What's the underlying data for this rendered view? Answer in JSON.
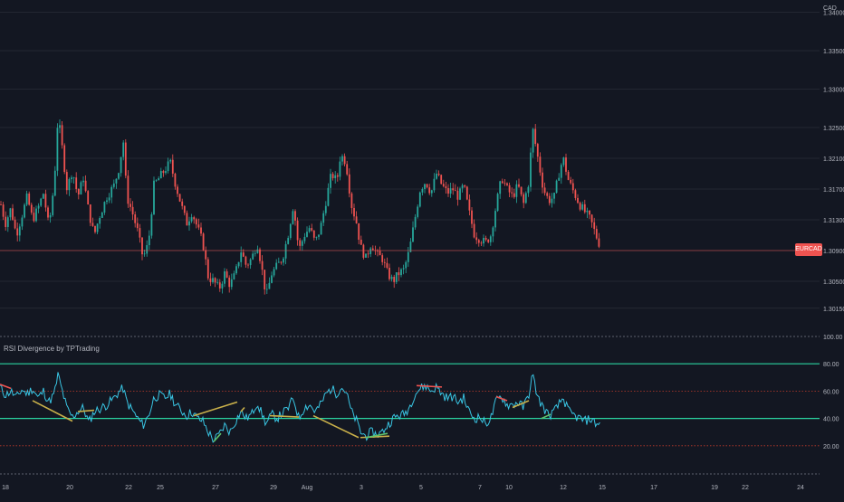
{
  "chart_data": [
    {
      "type": "candlestick",
      "symbol": "EURCAD",
      "currency": "CAD",
      "price_ticks": [
        "1.34000",
        "1.33500",
        "1.33000",
        "1.32500",
        "1.32100",
        "1.31700",
        "1.31300",
        "1.30900",
        "1.30500",
        "1.30150"
      ],
      "close_path": [
        [
          0,
          1.3155
        ],
        [
          6,
          1.3125
        ],
        [
          12,
          1.3145
        ],
        [
          18,
          1.311
        ],
        [
          24,
          1.3135
        ],
        [
          30,
          1.316
        ],
        [
          36,
          1.313
        ],
        [
          42,
          1.3145
        ],
        [
          48,
          1.3165
        ],
        [
          54,
          1.312
        ],
        [
          60,
          1.318
        ],
        [
          64,
          1.3265
        ],
        [
          68,
          1.323
        ],
        [
          74,
          1.317
        ],
        [
          80,
          1.3195
        ],
        [
          86,
          1.316
        ],
        [
          92,
          1.3185
        ],
        [
          98,
          1.314
        ],
        [
          104,
          1.311
        ],
        [
          110,
          1.3135
        ],
        [
          118,
          1.316
        ],
        [
          126,
          1.3175
        ],
        [
          132,
          1.32
        ],
        [
          136,
          1.3235
        ],
        [
          140,
          1.316
        ],
        [
          146,
          1.314
        ],
        [
          152,
          1.3115
        ],
        [
          158,
          1.308
        ],
        [
          164,
          1.31
        ],
        [
          170,
          1.3175
        ],
        [
          176,
          1.3185
        ],
        [
          182,
          1.3195
        ],
        [
          188,
          1.3205
        ],
        [
          194,
          1.3175
        ],
        [
          200,
          1.315
        ],
        [
          206,
          1.3125
        ],
        [
          212,
          1.314
        ],
        [
          218,
          1.312
        ],
        [
          224,
          1.31
        ],
        [
          230,
          1.3055
        ],
        [
          236,
          1.305
        ],
        [
          242,
          1.304
        ],
        [
          248,
          1.306
        ],
        [
          254,
          1.3045
        ],
        [
          260,
          1.306
        ],
        [
          266,
          1.309
        ],
        [
          272,
          1.307
        ],
        [
          278,
          1.308
        ],
        [
          284,
          1.31
        ],
        [
          288,
          1.3075
        ],
        [
          294,
          1.303
        ],
        [
          300,
          1.306
        ],
        [
          306,
          1.307
        ],
        [
          312,
          1.308
        ],
        [
          318,
          1.311
        ],
        [
          324,
          1.315
        ],
        [
          330,
          1.309
        ],
        [
          336,
          1.311
        ],
        [
          342,
          1.312
        ],
        [
          348,
          1.31
        ],
        [
          354,
          1.312
        ],
        [
          360,
          1.3155
        ],
        [
          366,
          1.319
        ],
        [
          372,
          1.318
        ],
        [
          376,
          1.3215
        ],
        [
          382,
          1.3205
        ],
        [
          388,
          1.315
        ],
        [
          394,
          1.3125
        ],
        [
          398,
          1.3095
        ],
        [
          404,
          1.308
        ],
        [
          410,
          1.31
        ],
        [
          416,
          1.3085
        ],
        [
          422,
          1.308
        ],
        [
          428,
          1.306
        ],
        [
          434,
          1.305
        ],
        [
          440,
          1.306
        ],
        [
          446,
          1.3065
        ],
        [
          452,
          1.309
        ],
        [
          458,
          1.313
        ],
        [
          464,
          1.317
        ],
        [
          470,
          1.318
        ],
        [
          476,
          1.3165
        ],
        [
          482,
          1.319
        ],
        [
          488,
          1.3175
        ],
        [
          494,
          1.3165
        ],
        [
          500,
          1.317
        ],
        [
          506,
          1.316
        ],
        [
          512,
          1.3175
        ],
        [
          518,
          1.314
        ],
        [
          524,
          1.311
        ],
        [
          530,
          1.3105
        ],
        [
          536,
          1.31
        ],
        [
          542,
          1.311
        ],
        [
          548,
          1.315
        ],
        [
          554,
          1.3185
        ],
        [
          560,
          1.317
        ],
        [
          566,
          1.316
        ],
        [
          572,
          1.3175
        ],
        [
          578,
          1.315
        ],
        [
          584,
          1.318
        ],
        [
          588,
          1.325
        ],
        [
          594,
          1.321
        ],
        [
          600,
          1.317
        ],
        [
          606,
          1.3155
        ],
        [
          612,
          1.316
        ],
        [
          618,
          1.3195
        ],
        [
          622,
          1.321
        ],
        [
          628,
          1.318
        ],
        [
          634,
          1.3165
        ],
        [
          640,
          1.315
        ],
        [
          646,
          1.314
        ],
        [
          652,
          1.313
        ],
        [
          658,
          1.311
        ],
        [
          663,
          1.3095
        ]
      ],
      "current_price": 1.3095,
      "gridlines": true
    },
    {
      "type": "line",
      "title": "RSI Divergence by TPTrading",
      "ylim": [
        0,
        100
      ],
      "y_ticks": [
        "100.00",
        "80.00",
        "60.00",
        "40.00",
        "20.00"
      ],
      "levels": {
        "overbought": 80,
        "upper_dotted": 60,
        "middle": 40,
        "lower_dotted": 20
      },
      "rsi_path": [
        [
          0,
          63
        ],
        [
          6,
          57
        ],
        [
          12,
          60
        ],
        [
          18,
          55
        ],
        [
          24,
          61
        ],
        [
          30,
          58
        ],
        [
          36,
          62
        ],
        [
          42,
          55
        ],
        [
          48,
          60
        ],
        [
          54,
          52
        ],
        [
          60,
          58
        ],
        [
          64,
          72
        ],
        [
          68,
          62
        ],
        [
          74,
          47
        ],
        [
          80,
          41
        ],
        [
          86,
          45
        ],
        [
          92,
          48
        ],
        [
          98,
          37
        ],
        [
          104,
          45
        ],
        [
          110,
          47
        ],
        [
          118,
          50
        ],
        [
          126,
          55
        ],
        [
          132,
          60
        ],
        [
          136,
          62
        ],
        [
          140,
          52
        ],
        [
          146,
          46
        ],
        [
          152,
          40
        ],
        [
          158,
          35
        ],
        [
          164,
          42
        ],
        [
          170,
          55
        ],
        [
          176,
          57
        ],
        [
          182,
          55
        ],
        [
          188,
          58
        ],
        [
          194,
          50
        ],
        [
          200,
          46
        ],
        [
          206,
          42
        ],
        [
          212,
          45
        ],
        [
          218,
          40
        ],
        [
          224,
          38
        ],
        [
          230,
          30
        ],
        [
          236,
          24
        ],
        [
          242,
          28
        ],
        [
          248,
          35
        ],
        [
          254,
          30
        ],
        [
          260,
          38
        ],
        [
          266,
          45
        ],
        [
          272,
          40
        ],
        [
          278,
          43
        ],
        [
          284,
          52
        ],
        [
          288,
          45
        ],
        [
          294,
          36
        ],
        [
          300,
          43
        ],
        [
          306,
          40
        ],
        [
          312,
          44
        ],
        [
          318,
          47
        ],
        [
          324,
          55
        ],
        [
          330,
          40
        ],
        [
          336,
          48
        ],
        [
          342,
          50
        ],
        [
          348,
          45
        ],
        [
          354,
          50
        ],
        [
          360,
          58
        ],
        [
          366,
          62
        ],
        [
          372,
          58
        ],
        [
          376,
          63
        ],
        [
          382,
          60
        ],
        [
          388,
          45
        ],
        [
          394,
          38
        ],
        [
          398,
          30
        ],
        [
          404,
          27
        ],
        [
          410,
          30
        ],
        [
          416,
          28
        ],
        [
          422,
          30
        ],
        [
          428,
          35
        ],
        [
          434,
          40
        ],
        [
          440,
          42
        ],
        [
          446,
          43
        ],
        [
          452,
          48
        ],
        [
          458,
          58
        ],
        [
          464,
          62
        ],
        [
          470,
          64
        ],
        [
          476,
          60
        ],
        [
          482,
          63
        ],
        [
          488,
          58
        ],
        [
          494,
          55
        ],
        [
          500,
          56
        ],
        [
          506,
          52
        ],
        [
          512,
          55
        ],
        [
          518,
          45
        ],
        [
          524,
          40
        ],
        [
          530,
          41
        ],
        [
          536,
          36
        ],
        [
          542,
          40
        ],
        [
          548,
          53
        ],
        [
          554,
          56
        ],
        [
          560,
          50
        ],
        [
          566,
          50
        ],
        [
          572,
          52
        ],
        [
          578,
          48
        ],
        [
          584,
          58
        ],
        [
          588,
          72
        ],
        [
          594,
          55
        ],
        [
          600,
          48
        ],
        [
          606,
          42
        ],
        [
          612,
          45
        ],
        [
          618,
          51
        ],
        [
          622,
          55
        ],
        [
          628,
          45
        ],
        [
          634,
          42
        ],
        [
          640,
          40
        ],
        [
          646,
          38
        ],
        [
          652,
          40
        ],
        [
          658,
          36
        ],
        [
          663,
          37
        ]
      ],
      "divergences": [
        {
          "kind": "bearish",
          "color": "#ef5350",
          "points": [
            [
              0,
              65
            ],
            [
              12,
              62
            ]
          ]
        },
        {
          "kind": "bullish",
          "color": "#c9b04a",
          "points": [
            [
              36,
              53
            ],
            [
              80,
              38
            ]
          ]
        },
        {
          "kind": "bullish",
          "color": "#c9b04a",
          "points": [
            [
              86,
              45
            ],
            [
              104,
              46
            ]
          ]
        },
        {
          "kind": "bullish",
          "color": "#c9b04a",
          "points": [
            [
              214,
              42
            ],
            [
              262,
              52
            ]
          ]
        },
        {
          "kind": "bullish",
          "color": "#c9b04a",
          "points": [
            [
              266,
              45
            ],
            [
              270,
              48
            ]
          ]
        },
        {
          "kind": "bullish",
          "color": "#c9b04a",
          "points": [
            [
              298,
              42
            ],
            [
              330,
              41
            ]
          ]
        },
        {
          "kind": "bullish",
          "color": "#c9b04a",
          "points": [
            [
              346,
              42
            ],
            [
              396,
              26
            ]
          ]
        },
        {
          "kind": "bullish",
          "color": "#c9b04a",
          "points": [
            [
              398,
              26
            ],
            [
              430,
              27
            ]
          ]
        },
        {
          "kind": "bearish",
          "color": "#ef5350",
          "points": [
            [
              460,
              64
            ],
            [
              488,
              63
            ]
          ]
        },
        {
          "kind": "bearish",
          "color": "#ef5350",
          "points": [
            [
              548,
              56
            ],
            [
              560,
              53
            ]
          ]
        },
        {
          "kind": "bullish",
          "color": "#c9b04a",
          "points": [
            [
              566,
              48
            ],
            [
              584,
              53
            ]
          ]
        },
        {
          "kind": "bullish",
          "color": "#5ec26a",
          "points": [
            [
              236,
              23
            ],
            [
              244,
              29
            ]
          ]
        },
        {
          "kind": "bullish",
          "color": "#5ec26a",
          "points": [
            [
              404,
              26
            ],
            [
              428,
              29
            ]
          ]
        },
        {
          "kind": "bullish",
          "color": "#5ec26a",
          "points": [
            [
              598,
              40
            ],
            [
              608,
              43
            ]
          ]
        }
      ]
    }
  ],
  "time_axis": [
    {
      "label": "18",
      "x": 6
    },
    {
      "label": "20",
      "x": 77
    },
    {
      "label": "22",
      "x": 142
    },
    {
      "label": "25",
      "x": 177
    },
    {
      "label": "27",
      "x": 238
    },
    {
      "label": "29",
      "x": 302
    },
    {
      "label": "Aug",
      "x": 339
    },
    {
      "label": "3",
      "x": 399
    },
    {
      "label": "5",
      "x": 465
    },
    {
      "label": "7",
      "x": 530
    },
    {
      "label": "10",
      "x": 562
    },
    {
      "label": "12",
      "x": 622
    },
    {
      "label": "15",
      "x": 665
    },
    {
      "label": "17",
      "x": 722
    },
    {
      "label": "19",
      "x": 789
    },
    {
      "label": "22",
      "x": 823
    },
    {
      "label": "24",
      "x": 884
    }
  ],
  "colors": {
    "background": "#131722",
    "bull": "#26a69a",
    "bear": "#ef5350",
    "rsi": "#39c5e3",
    "level": "#2bd4a0",
    "grid": "#2a2e39",
    "text": "#b2b5be"
  }
}
